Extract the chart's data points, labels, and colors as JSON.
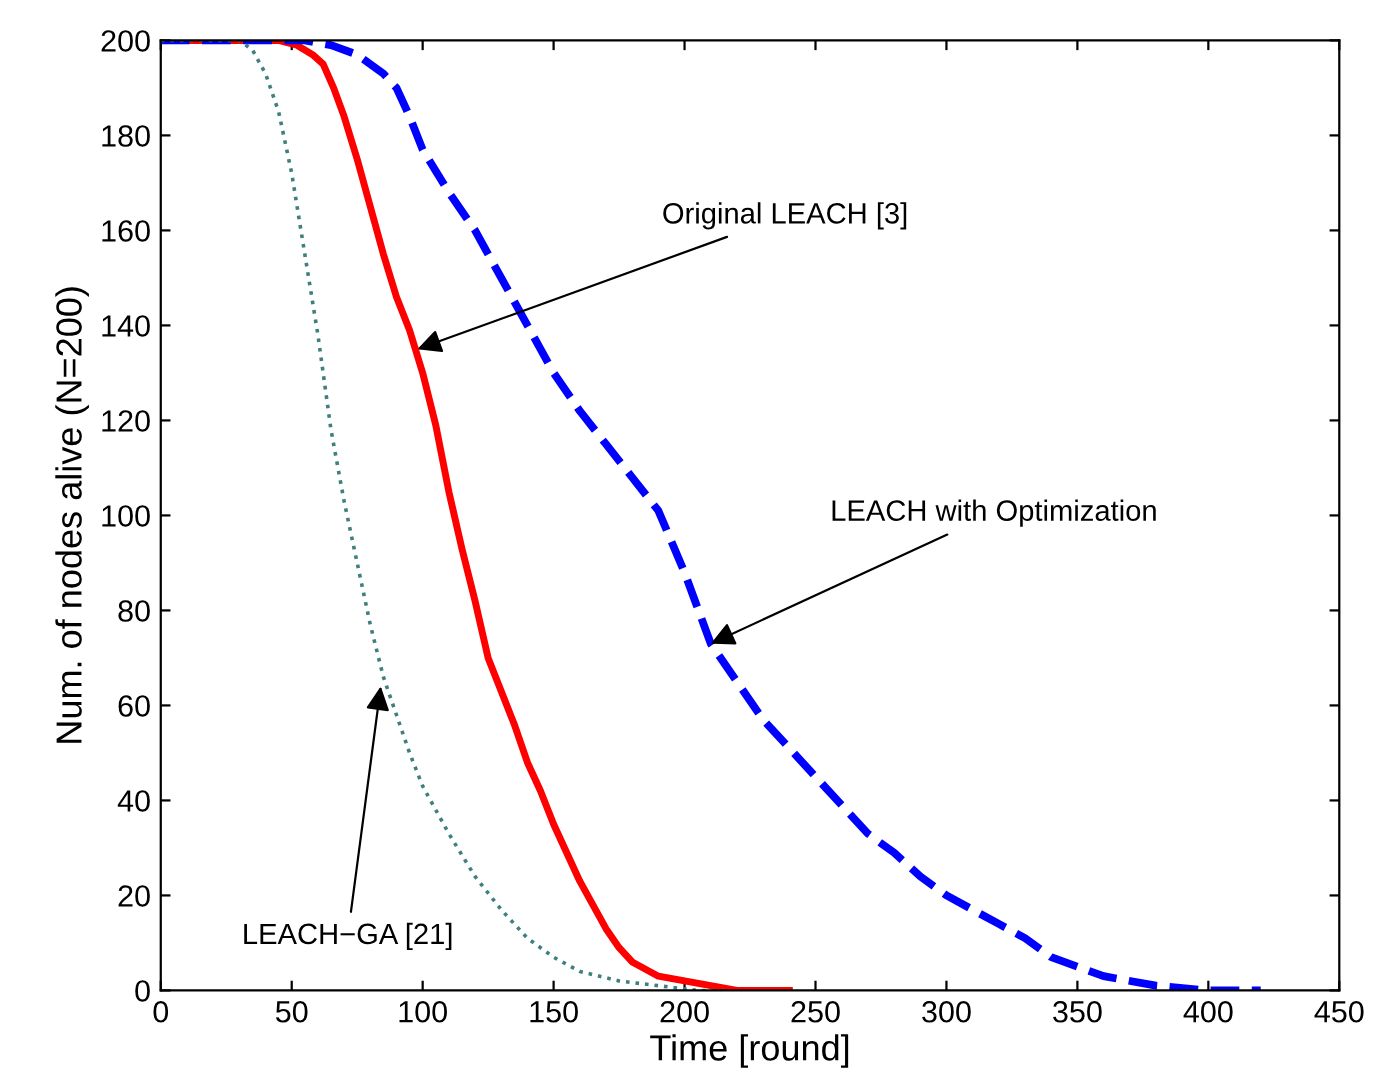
{
  "chart_data": {
    "type": "line",
    "xlabel": "Time [round]",
    "ylabel": "Num. of nodes alive (N=200)",
    "xlim": [
      0,
      450
    ],
    "ylim": [
      0,
      200
    ],
    "xticks": [
      0,
      50,
      100,
      150,
      200,
      250,
      300,
      350,
      400,
      450
    ],
    "yticks": [
      0,
      20,
      40,
      60,
      80,
      100,
      120,
      140,
      160,
      180,
      200
    ],
    "grid": false,
    "legend": false,
    "series": [
      {
        "color": "#ff0000",
        "line_style": "solid",
        "x": [
          0,
          45,
          52,
          58,
          62,
          66,
          70,
          75,
          80,
          85,
          90,
          95,
          100,
          105,
          110,
          115,
          120,
          125,
          130,
          135,
          140,
          145,
          150,
          155,
          160,
          165,
          170,
          175,
          180,
          190,
          200,
          210,
          220,
          240
        ],
        "values": [
          200,
          200,
          199,
          197,
          195,
          190,
          184,
          175,
          165,
          155,
          146,
          139,
          130,
          119,
          105,
          93,
          82,
          70,
          63,
          56,
          48,
          42,
          35,
          29,
          23,
          18,
          13,
          9,
          6,
          3,
          2,
          1,
          0,
          0
        ]
      },
      {
        "color": "#0000ff",
        "line_style": "dashed",
        "x": [
          0,
          55,
          65,
          75,
          85,
          90,
          95,
          100,
          110,
          120,
          130,
          140,
          150,
          160,
          170,
          180,
          190,
          200,
          210,
          220,
          230,
          240,
          250,
          260,
          270,
          280,
          290,
          300,
          310,
          320,
          330,
          340,
          350,
          360,
          380,
          400,
          420
        ],
        "values": [
          200,
          200,
          199,
          197,
          193,
          190,
          184,
          177,
          168,
          160,
          150,
          140,
          130,
          122,
          115,
          108,
          101,
          88,
          73,
          65,
          57,
          51,
          45,
          39,
          33,
          29,
          24,
          20,
          17,
          14,
          11,
          7,
          5,
          3,
          1,
          0,
          0
        ]
      },
      {
        "color": "#3f7f7f",
        "line_style": "dotted",
        "x": [
          0,
          30,
          35,
          40,
          45,
          50,
          55,
          60,
          65,
          70,
          75,
          80,
          85,
          90,
          95,
          100,
          110,
          120,
          130,
          140,
          150,
          160,
          175,
          190,
          205,
          215
        ],
        "values": [
          200,
          200,
          198,
          193,
          185,
          172,
          155,
          138,
          118,
          103,
          90,
          77,
          66,
          58,
          50,
          43,
          33,
          24,
          17,
          11,
          7,
          4,
          2,
          1,
          0,
          0
        ]
      }
    ],
    "annotations": [
      {
        "text": "Original LEACH [3]",
        "x": 98,
        "y": 135
      },
      {
        "text": "LEACH with Optimization",
        "x": 210,
        "y": 73
      },
      {
        "text": "LEACH−GA [21]",
        "x": 84,
        "y": 64
      }
    ]
  }
}
